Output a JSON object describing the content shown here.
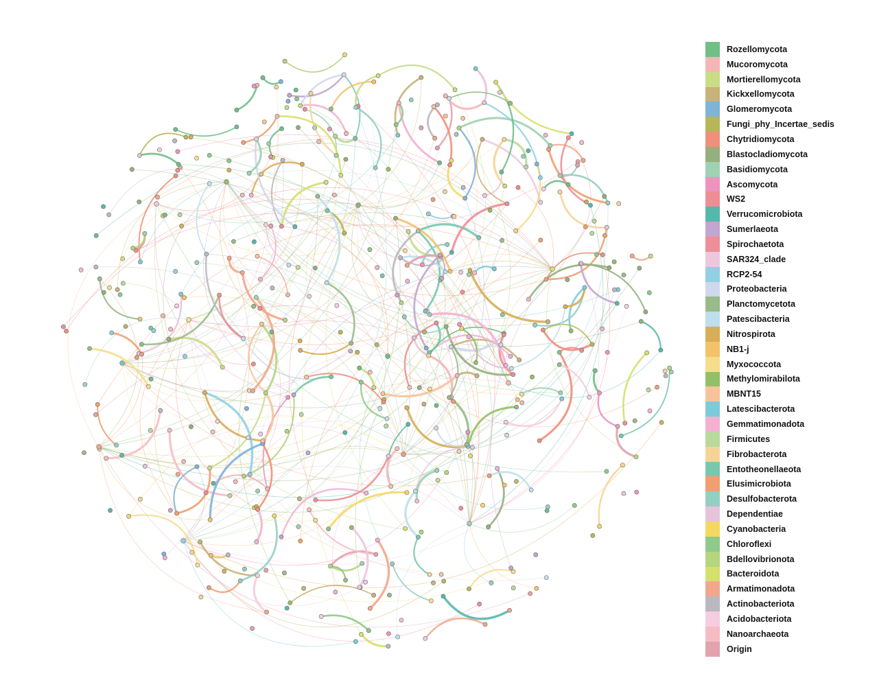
{
  "legend": {
    "items": [
      {
        "label": "Rozellomycota",
        "color": "#6fbf86"
      },
      {
        "label": "Mucoromycota",
        "color": "#f4b6b6"
      },
      {
        "label": "Mortierellomycota",
        "color": "#c9dc86"
      },
      {
        "label": "Kickxellomycota",
        "color": "#c7b27a"
      },
      {
        "label": "Glomeromycota",
        "color": "#7fb3d8"
      },
      {
        "label": "Fungi_phy_Incertae_sedis",
        "color": "#b8b65a"
      },
      {
        "label": "Chytridiomycota",
        "color": "#f08f7c"
      },
      {
        "label": "Blastocladiomycota",
        "color": "#93b07e"
      },
      {
        "label": "Basidiomycota",
        "color": "#9fd1b3"
      },
      {
        "label": "Ascomycota",
        "color": "#ec94bd"
      },
      {
        "label": "WS2",
        "color": "#ee8e94"
      },
      {
        "label": "Verrucomicrobiota",
        "color": "#56b8ad"
      },
      {
        "label": "Sumerlaeota",
        "color": "#c3a6cf"
      },
      {
        "label": "Spirochaetota",
        "color": "#ee8f98"
      },
      {
        "label": "SAR324_clade",
        "color": "#ecc8df"
      },
      {
        "label": "RCP2-54",
        "color": "#8fd1e3"
      },
      {
        "label": "Proteobacteria",
        "color": "#d0d8ec"
      },
      {
        "label": "Planctomycetota",
        "color": "#98bb8a"
      },
      {
        "label": "Patescibacteria",
        "color": "#bedfec"
      },
      {
        "label": "Nitrospirota",
        "color": "#d8ae58"
      },
      {
        "label": "NB1-j",
        "color": "#f3c26b"
      },
      {
        "label": "Myxococcota",
        "color": "#f4de8c"
      },
      {
        "label": "Methylomirabilota",
        "color": "#93c066"
      },
      {
        "label": "MBNT15",
        "color": "#f6c49c"
      },
      {
        "label": "Latescibacterota",
        "color": "#7dcad9"
      },
      {
        "label": "Gemmatimonadota",
        "color": "#f3b1d2"
      },
      {
        "label": "Firmicutes",
        "color": "#b8da9c"
      },
      {
        "label": "Fibrobacterota",
        "color": "#f6d498"
      },
      {
        "label": "Entotheonellaeota",
        "color": "#78c8ae"
      },
      {
        "label": "Elusimicrobiota",
        "color": "#f0a070"
      },
      {
        "label": "Desulfobacterota",
        "color": "#94cfc4"
      },
      {
        "label": "Dependentiae",
        "color": "#e6c3da"
      },
      {
        "label": "Cyanobacteria",
        "color": "#f5d861"
      },
      {
        "label": "Chloroflexi",
        "color": "#8ecb8a"
      },
      {
        "label": "Bdellovibrionota",
        "color": "#b5d57e"
      },
      {
        "label": "Bacteroidota",
        "color": "#d6e06c"
      },
      {
        "label": "Armatimonadota",
        "color": "#f2a78c"
      },
      {
        "label": "Actinobacteriota",
        "color": "#bab9c0"
      },
      {
        "label": "Acidobacteriota",
        "color": "#f5cde0"
      },
      {
        "label": "Nanoarchaeota",
        "color": "#f6bcc4"
      },
      {
        "label": "Origin",
        "color": "#e2a3ae"
      }
    ]
  }
}
